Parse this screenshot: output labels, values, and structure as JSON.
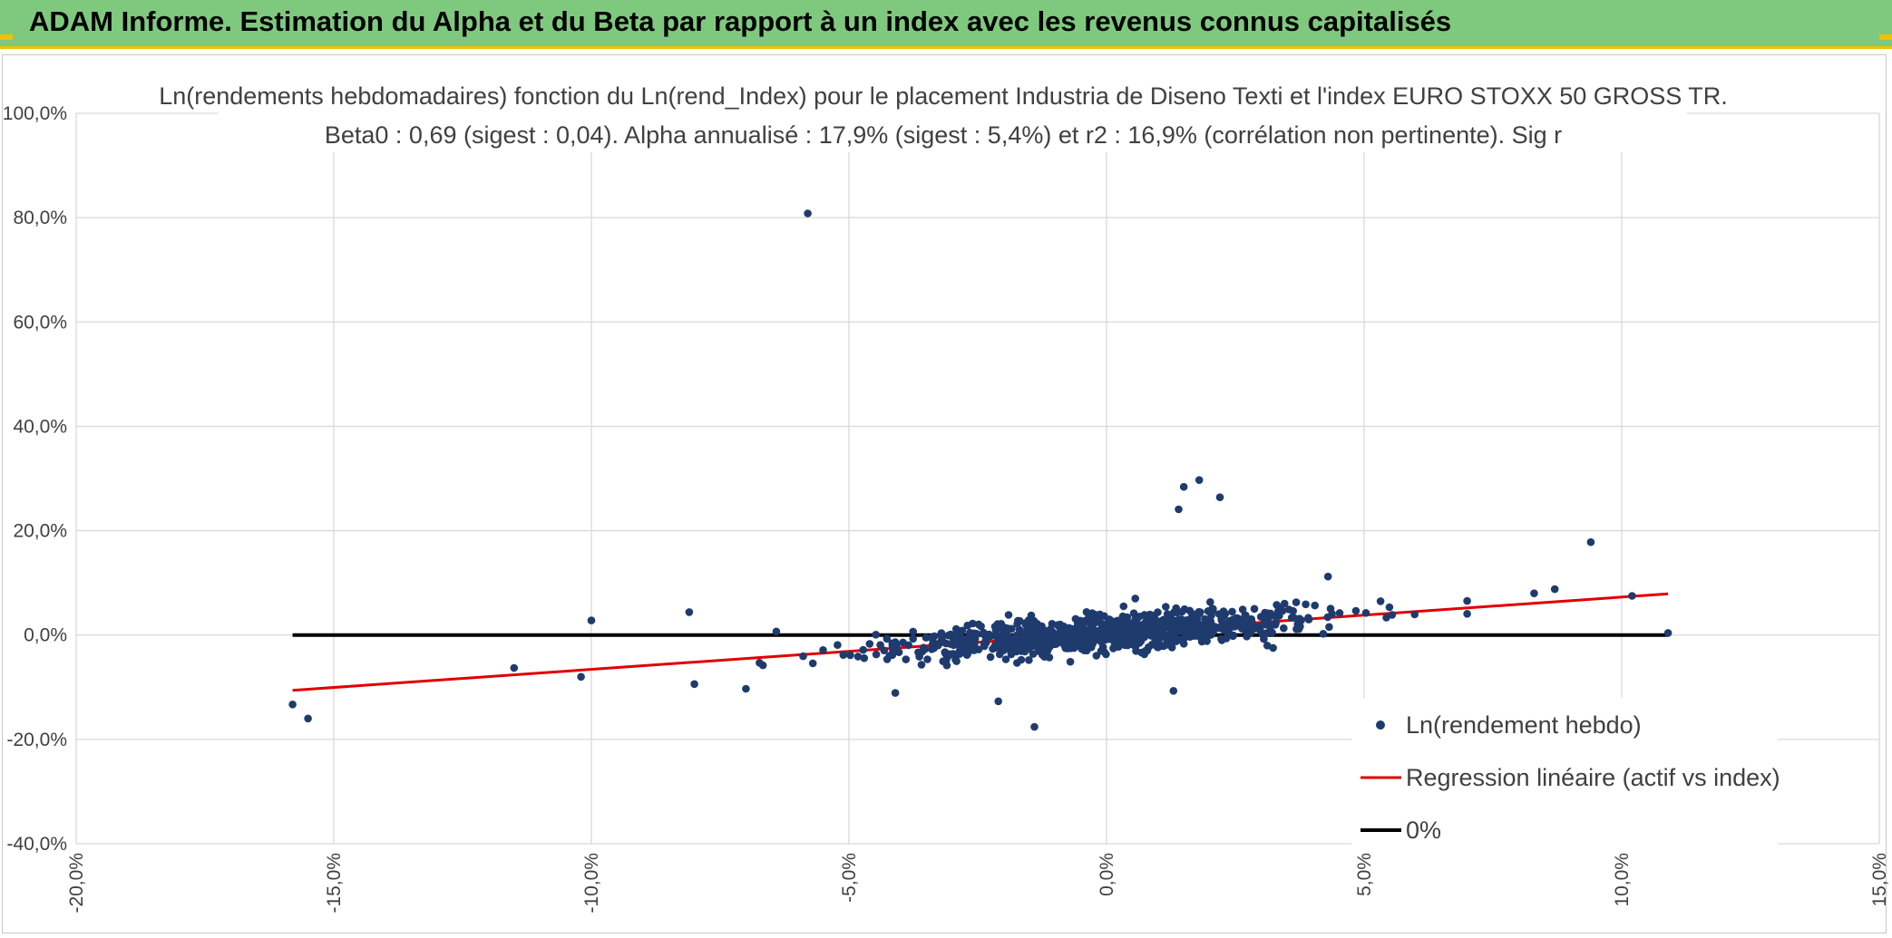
{
  "header": {
    "title": "ADAM Informe. Estimation du Alpha et du Beta par rapport à un index avec les revenus connus capitalisés"
  },
  "colors": {
    "banner": "#7fc97f",
    "accent_border": "#f0c000",
    "points": "#1f3b6e",
    "regression": "#e00000",
    "zero_line": "#000000",
    "grid": "#d9d9d9"
  },
  "chart_data": {
    "type": "scatter",
    "title": "Ln(rendements hebdomadaires) fonction du Ln(rend_Index) pour le placement Industria de Diseno Texti et l'index EURO STOXX 50 GROSS TR.",
    "subtitle": "Beta0 : 0,69 (sigest : 0,04). Alpha annualisé : 17,9% (sigest : 5,4%) et r2 : 16,9% (corrélation non pertinente). Sig r",
    "xlabel": "",
    "ylabel": "",
    "xlim": [
      -20,
      15
    ],
    "ylim": [
      -40,
      100
    ],
    "x_ticks": [
      "-20,0%",
      "-15,0%",
      "-10,0%",
      "-5,0%",
      "0,0%",
      "5,0%",
      "10,0%",
      "15,0%"
    ],
    "y_ticks": [
      "100,0%",
      "80,0%",
      "60,0%",
      "40,0%",
      "20,0%",
      "0,0%",
      "-20,0%",
      "-40,0%"
    ],
    "grid": true,
    "legend_position": "bottom-right",
    "legend": [
      "Ln(rendement hebdo)",
      "Regression linéaire (actif vs index)",
      "0%"
    ],
    "series": [
      {
        "name": "Ln(rendement hebdo)",
        "kind": "scatter",
        "outliers": [
          [
            -5.8,
            80.8
          ],
          [
            1.8,
            29.7
          ],
          [
            1.5,
            28.4
          ],
          [
            2.2,
            26.4
          ],
          [
            1.4,
            24.1
          ],
          [
            9.4,
            17.8
          ],
          [
            -1.4,
            -17.6
          ],
          [
            -15.8,
            -13.3
          ],
          [
            -15.5,
            -16.0
          ],
          [
            -2.1,
            -12.7
          ],
          [
            1.3,
            -10.7
          ],
          [
            -4.1,
            -11.1
          ],
          [
            10.2,
            7.5
          ],
          [
            10.9,
            0.4
          ],
          [
            8.7,
            8.8
          ],
          [
            8.3,
            8.0
          ],
          [
            -10.0,
            2.8
          ],
          [
            -8.1,
            4.4
          ],
          [
            -11.5,
            -6.3
          ],
          [
            -10.2,
            -8.0
          ],
          [
            4.3,
            11.2
          ],
          [
            -7.0,
            -10.3
          ],
          [
            -8.0,
            -9.4
          ]
        ],
        "cluster_points": 920,
        "cluster_slope": 0.69,
        "cluster_intercept": 0.34
      },
      {
        "name": "Regression linéaire (actif vs index)",
        "kind": "line",
        "x": [
          -15.8,
          10.9
        ],
        "y": [
          -10.6,
          7.9
        ]
      },
      {
        "name": "0%",
        "kind": "line",
        "x": [
          -15.8,
          10.9
        ],
        "y": [
          0,
          0
        ]
      }
    ]
  }
}
